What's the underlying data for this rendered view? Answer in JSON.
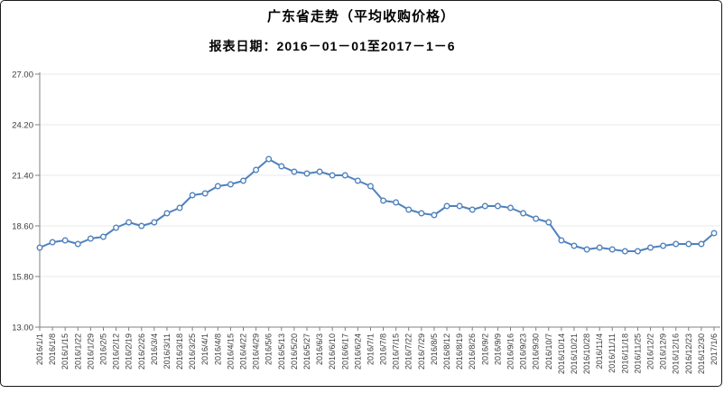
{
  "header": {
    "title": "广东省走势（平均收购价格）",
    "subtitle": "报表日期：2016－01－01至2017－1－6"
  },
  "chart_data": {
    "type": "line",
    "title": "广东省走势（平均收购价格）",
    "subtitle": "报表日期：2016－01－01至2017－1－6",
    "series_name": "平均收购价格",
    "x": [
      "2016/1/1",
      "2016/1/8",
      "2016/1/15",
      "2016/1/22",
      "2016/1/29",
      "2016/2/5",
      "2016/2/12",
      "2016/2/19",
      "2016/2/26",
      "2016/3/4",
      "2016/3/11",
      "2016/3/18",
      "2016/3/25",
      "2016/4/1",
      "2016/4/8",
      "2016/4/15",
      "2016/4/22",
      "2016/4/29",
      "2016/5/6",
      "2016/5/13",
      "2016/5/20",
      "2016/5/27",
      "2016/6/3",
      "2016/6/10",
      "2016/6/17",
      "2016/6/24",
      "2016/7/1",
      "2016/7/8",
      "2016/7/15",
      "2016/7/22",
      "2016/7/29",
      "2016/8/5",
      "2016/8/12",
      "2016/8/19",
      "2016/8/26",
      "2016/9/2",
      "2016/9/9",
      "2016/9/16",
      "2016/9/23",
      "2016/9/30",
      "2016/10/7",
      "2016/10/14",
      "2016/10/21",
      "2016/10/28",
      "2016/11/4",
      "2016/11/11",
      "2016/11/18",
      "2016/11/25",
      "2016/12/2",
      "2016/12/9",
      "2016/12/16",
      "2016/12/23",
      "2016/12/30",
      "2017/1/6"
    ],
    "values": [
      17.4,
      17.7,
      17.8,
      17.6,
      17.9,
      18.0,
      18.5,
      18.8,
      18.6,
      18.8,
      19.3,
      19.6,
      20.3,
      20.4,
      20.8,
      20.9,
      21.1,
      21.7,
      22.3,
      21.9,
      21.6,
      21.5,
      21.6,
      21.4,
      21.4,
      21.1,
      20.8,
      20.0,
      19.9,
      19.5,
      19.3,
      19.2,
      19.7,
      19.7,
      19.5,
      19.7,
      19.7,
      19.6,
      19.3,
      19.0,
      18.8,
      17.8,
      17.5,
      17.3,
      17.4,
      17.3,
      17.2,
      17.2,
      17.4,
      17.5,
      17.6,
      17.6,
      17.6,
      18.2
    ],
    "y_ticks": [
      13.0,
      15.8,
      18.6,
      21.4,
      24.2,
      27.0
    ],
    "y_tick_labels": [
      "13.00",
      "15.80",
      "18.60",
      "21.40",
      "24.20",
      "27.00"
    ],
    "ylim": [
      13.0,
      27.0
    ],
    "grid": true,
    "legend": "none",
    "line_color": "#4f81bd",
    "marker_fill": "#ffffff",
    "axis_color": "#808080",
    "grid_color": "#e9e9e9",
    "x_label_rotation": -90
  }
}
